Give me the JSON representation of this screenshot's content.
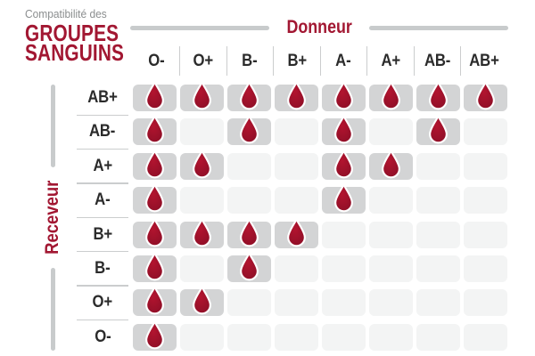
{
  "title": {
    "eyebrow": "Compatibilité des",
    "line1": "GROUPES",
    "line2": "SANGUINS"
  },
  "donor_axis_label": "Donneur",
  "receiver_axis_label": "Receveur",
  "chart_data": {
    "type": "heatmap",
    "title": "Compatibilité des GROUPES SANGUINS",
    "columns_label": "Donneur",
    "rows_label": "Receveur",
    "columns": [
      "O-",
      "O+",
      "B-",
      "B+",
      "A-",
      "A+",
      "AB-",
      "AB+"
    ],
    "rows": [
      "AB+",
      "AB-",
      "A+",
      "A-",
      "B+",
      "B-",
      "O+",
      "O-"
    ],
    "values": [
      [
        1,
        1,
        1,
        1,
        1,
        1,
        1,
        1
      ],
      [
        1,
        0,
        1,
        0,
        1,
        0,
        1,
        0
      ],
      [
        1,
        1,
        0,
        0,
        1,
        1,
        0,
        0
      ],
      [
        1,
        0,
        0,
        0,
        1,
        0,
        0,
        0
      ],
      [
        1,
        1,
        1,
        1,
        0,
        0,
        0,
        0
      ],
      [
        1,
        0,
        1,
        0,
        0,
        0,
        0,
        0
      ],
      [
        1,
        1,
        0,
        0,
        0,
        0,
        0,
        0
      ],
      [
        1,
        0,
        0,
        0,
        0,
        0,
        0,
        0
      ]
    ],
    "marker_legend": "blood-drop = compatible, empty cell = incompatible"
  },
  "icons": {
    "drop": "blood-drop-icon"
  },
  "colors": {
    "accent_red": "#a21732",
    "drop_center": "#b2142f",
    "drop_edge": "#8e0f27",
    "cell_filled_bg": "#d3d4d5",
    "cell_empty_bg": "#f3f4f4",
    "axis_line_gray": "#c8cbcc",
    "separator_gray": "#cbcdce",
    "eyebrow_gray": "#8b8e8f",
    "label_dark": "#2b2b2b"
  }
}
